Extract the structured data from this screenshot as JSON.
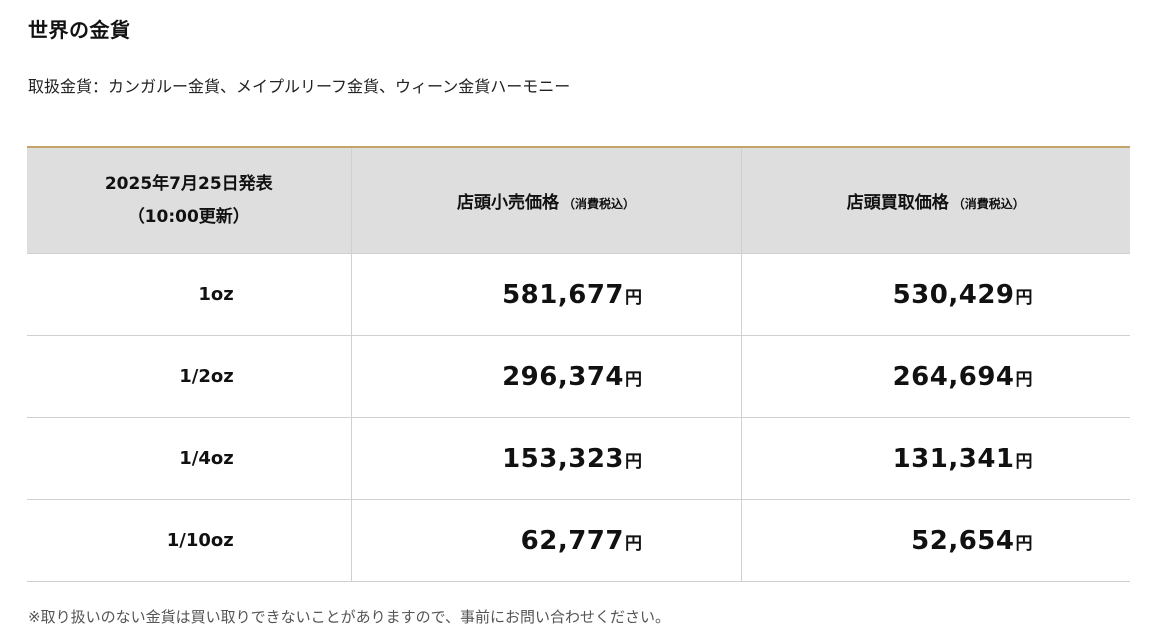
{
  "page": {
    "title": "世界の金貨",
    "subtitle": "取扱金貨：カンガルー金貨、メイプルリーフ金貨、ウィーン金貨ハーモニー",
    "note": "※取り扱いのない金貨は買い取りできないことがありますので、事前にお問い合わせください。"
  },
  "table": {
    "header": {
      "date_line1": "2025年7月25日発表",
      "date_line2": "（10:00更新）",
      "retail_label": "店頭小売価格",
      "retail_note": "（消費税込）",
      "buy_label": "店頭買取価格",
      "buy_note": "（消費税込）"
    },
    "currency_unit": "円",
    "rows": [
      {
        "weight": "1oz",
        "retail": "581,677",
        "buy": "530,429"
      },
      {
        "weight": "1/2oz",
        "retail": "296,374",
        "buy": "264,694"
      },
      {
        "weight": "1/4oz",
        "retail": "153,323",
        "buy": "131,341"
      },
      {
        "weight": "1/10oz",
        "retail": "62,777",
        "buy": "52,654"
      }
    ]
  },
  "colors": {
    "header_bg": "#dedede",
    "header_accent": "#c4a46a",
    "border": "#d0d0d0"
  }
}
